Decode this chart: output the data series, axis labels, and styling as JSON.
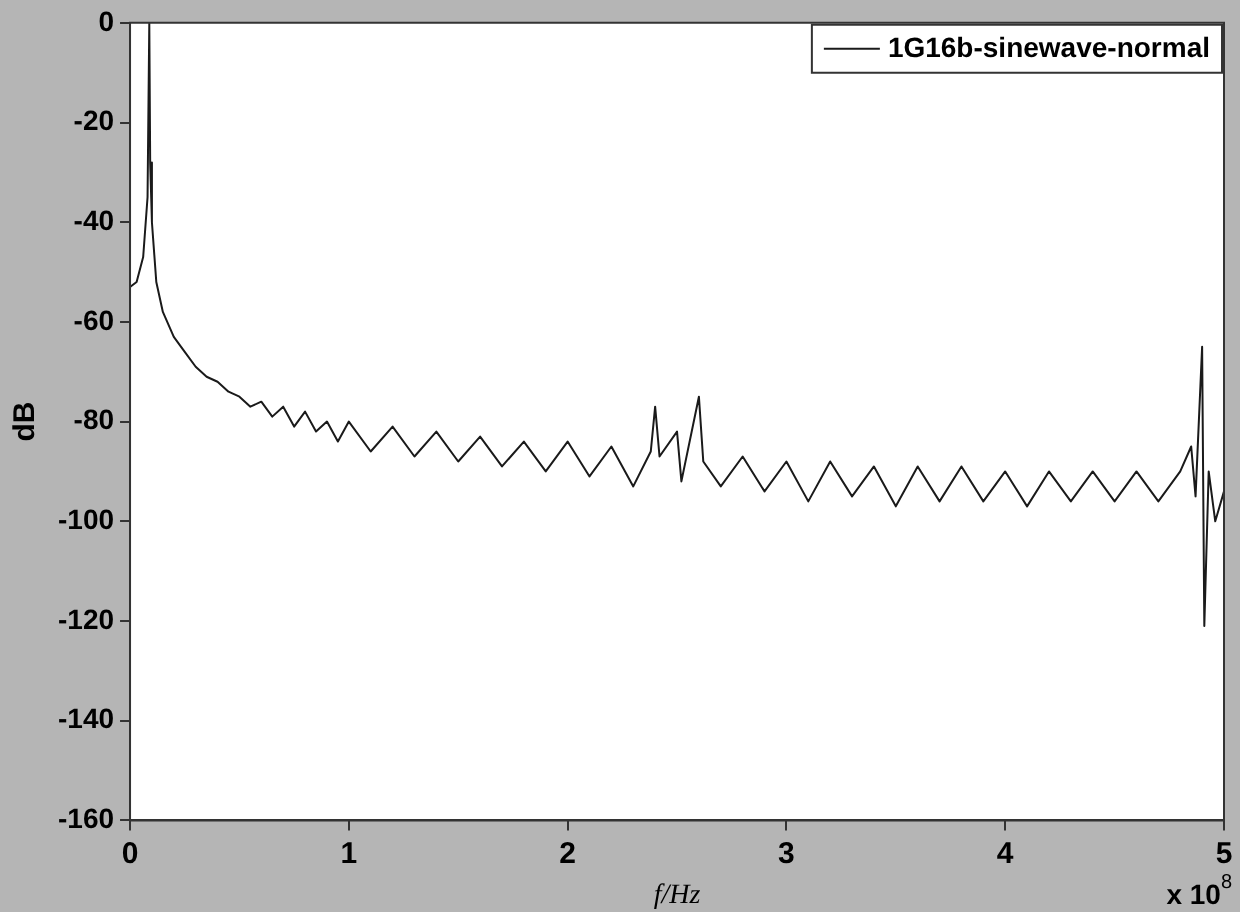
{
  "chart_data": {
    "type": "line",
    "xlabel": "f/Hz",
    "ylabel": "dB",
    "annotations": [
      "x 10$^{8}$"
    ],
    "xlim": [
      0,
      5
    ],
    "xticks": [
      0,
      1,
      2,
      3,
      4,
      5
    ],
    "ylim": [
      -160,
      0
    ],
    "yticks": [
      -160,
      -140,
      -120,
      -100,
      -80,
      -60,
      -40,
      -20,
      0
    ],
    "grid": false,
    "legend": "top right",
    "marker": "none",
    "line_style": "solid",
    "series": [
      {
        "name": "1G16b-sinewave-normal",
        "color": "#1a1a1a",
        "x": [
          0,
          0.03,
          0.06,
          0.08,
          0.088,
          0.092,
          0.1,
          0.12,
          0.15,
          0.2,
          0.25,
          0.3,
          0.35,
          0.4,
          0.45,
          0.5,
          0.55,
          0.6,
          0.65,
          0.7,
          0.75,
          0.8,
          0.85,
          0.9,
          0.95,
          1.0,
          1.1,
          1.2,
          1.3,
          1.4,
          1.5,
          1.6,
          1.7,
          1.8,
          1.9,
          2.0,
          2.1,
          2.2,
          2.3,
          2.38,
          2.4,
          2.42,
          2.5,
          2.52,
          2.6,
          2.62,
          2.7,
          2.8,
          2.9,
          3.0,
          3.1,
          3.2,
          3.3,
          3.4,
          3.5,
          3.6,
          3.7,
          3.8,
          3.9,
          4.0,
          4.1,
          4.2,
          4.3,
          4.4,
          4.5,
          4.6,
          4.7,
          4.8,
          4.85,
          4.87,
          4.9,
          4.91,
          4.93,
          4.96,
          5.0
        ],
        "values": [
          -53,
          -52,
          -47,
          -35,
          0,
          -28,
          -40,
          -52,
          -58,
          -63,
          -66,
          -69,
          -71,
          -72,
          -74,
          -75,
          -77,
          -76,
          -79,
          -77,
          -81,
          -78,
          -82,
          -80,
          -84,
          -80,
          -86,
          -81,
          -87,
          -82,
          -88,
          -83,
          -89,
          -84,
          -90,
          -84,
          -91,
          -85,
          -93,
          -86,
          -77,
          -87,
          -82,
          -92,
          -75,
          -88,
          -93,
          -87,
          -94,
          -88,
          -96,
          -88,
          -95,
          -89,
          -97,
          -89,
          -96,
          -89,
          -96,
          -90,
          -97,
          -90,
          -96,
          -90,
          -96,
          -90,
          -96,
          -90,
          -85,
          -95,
          -65,
          -121,
          -90,
          -100,
          -94
        ]
      }
    ]
  }
}
